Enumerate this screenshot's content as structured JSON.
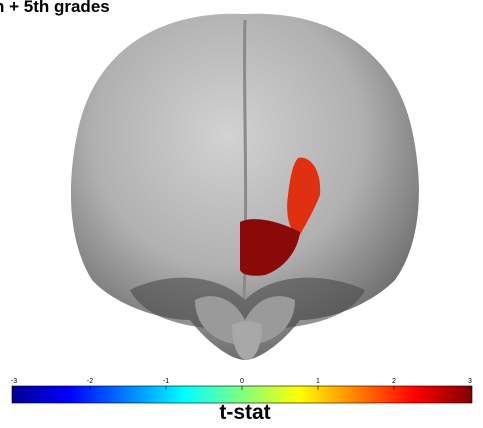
{
  "title": "h + 5th grades",
  "colorbar": {
    "label": "t-stat",
    "lim": [
      -3,
      3
    ],
    "ticks": [
      -3,
      -2,
      -1,
      0,
      1,
      2,
      3
    ]
  }
}
